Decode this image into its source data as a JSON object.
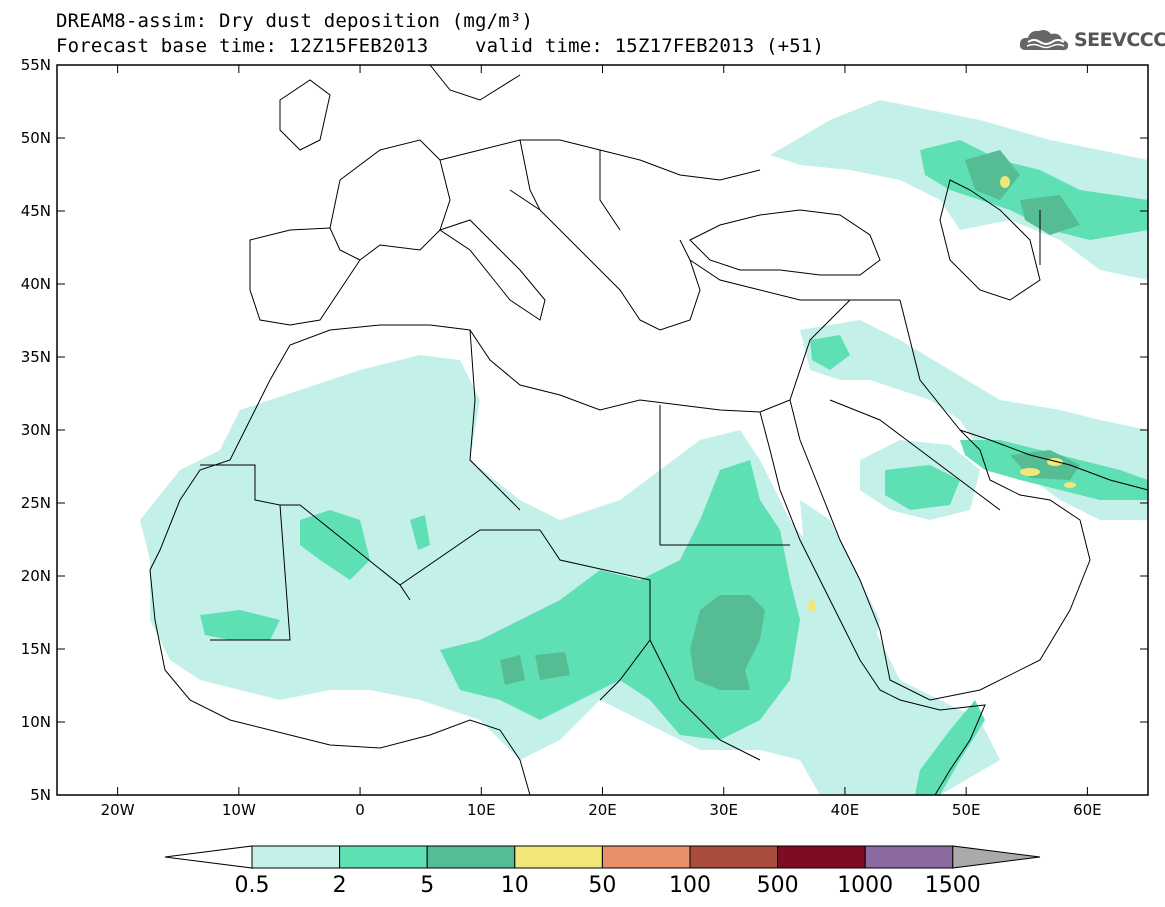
{
  "header": {
    "title_line1": "DREAM8-assim: Dry dust deposition (mg/m³)",
    "title_line2": "Forecast base time: 12Z15FEB2013    valid time: 15Z17FEB2013 (+51)",
    "logo_text": "SEEVCCC",
    "logo_icon": "cloud-icon"
  },
  "map": {
    "lon_range": [
      -25,
      65
    ],
    "lat_range": [
      5,
      55
    ],
    "lat_labels": [
      "55N",
      "50N",
      "45N",
      "40N",
      "35N",
      "30N",
      "25N",
      "20N",
      "15N",
      "10N",
      "5N"
    ],
    "lon_labels": [
      "20W",
      "10W",
      "0",
      "10E",
      "20E",
      "30E",
      "40E",
      "50E",
      "60E"
    ]
  },
  "legend": {
    "labels": [
      "0.5",
      "2",
      "5",
      "10",
      "50",
      "100",
      "500",
      "1000",
      "1500"
    ],
    "colors": [
      "#c4f0ea",
      "#5ee0b4",
      "#56bc94",
      "#f2e87a",
      "#e8906a",
      "#a84c3c",
      "#800c24",
      "#8a6aa0"
    ],
    "under_color": "#ffffff",
    "over_color": "#aaaaaa"
  }
}
